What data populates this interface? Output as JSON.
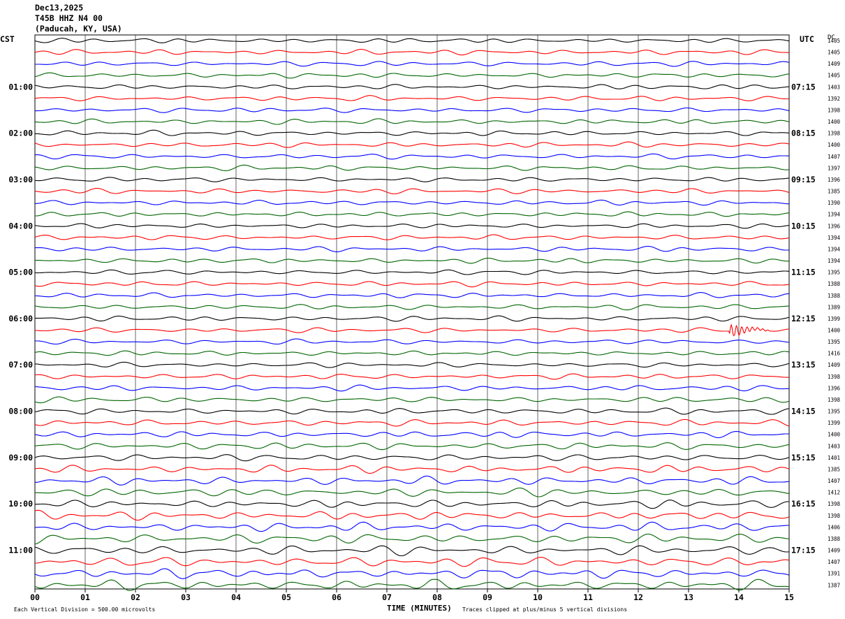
{
  "header": {
    "date": "Dec13,2025",
    "station": "T45B HHZ N4 00",
    "location": "(Paducah, KY, USA)"
  },
  "left_axis_title": "CST",
  "right_axis_title": "UTC",
  "dc_axis_title": "DC",
  "footer": {
    "scale_note": "Each Vertical Division =  500.00 microvolts",
    "xlabel": "TIME (MINUTES)",
    "clip_note": "Traces clipped at plus/minus 5 vertical divisions"
  },
  "colors": {
    "cycle": [
      "#000000",
      "#ff0000",
      "#0000ff",
      "#006400"
    ],
    "grid": "#000000"
  },
  "chart_data": {
    "type": "line",
    "title": "T45B HHZ N4 00",
    "xlabel": "TIME (MINUTES)",
    "x_ticks": [
      "00",
      "01",
      "02",
      "03",
      "04",
      "05",
      "06",
      "07",
      "08",
      "09",
      "10",
      "11",
      "12",
      "13",
      "14",
      "15"
    ],
    "xlim": [
      0,
      15
    ],
    "left_hour_labels": [
      "01:00",
      "02:00",
      "03:00",
      "04:00",
      "05:00",
      "06:00",
      "07:00",
      "08:00",
      "09:00",
      "10:00",
      "11:00"
    ],
    "right_hour_labels": [
      "07:15",
      "08:15",
      "09:15",
      "10:15",
      "11:15",
      "12:15",
      "13:15",
      "14:15",
      "15:15",
      "16:15",
      "17:15"
    ],
    "trace_count": 48,
    "dc_offsets": [
      1405,
      1405,
      1409,
      1405,
      1403,
      1392,
      1398,
      1400,
      1398,
      1400,
      1407,
      1397,
      1396,
      1385,
      1390,
      1394,
      1396,
      1394,
      1394,
      1394,
      1395,
      1388,
      1388,
      1389,
      1399,
      1400,
      1395,
      1416,
      1409,
      1398,
      1396,
      1398,
      1395,
      1399,
      1400,
      1403,
      1401,
      1385,
      1407,
      1412,
      1398,
      1398,
      1406,
      1388,
      1409,
      1407,
      1391,
      1387
    ],
    "amplitude_growth": "low early, rising after 07:00",
    "events": [
      {
        "trace": 25,
        "minute": 13.85,
        "note": "burst"
      }
    ]
  }
}
